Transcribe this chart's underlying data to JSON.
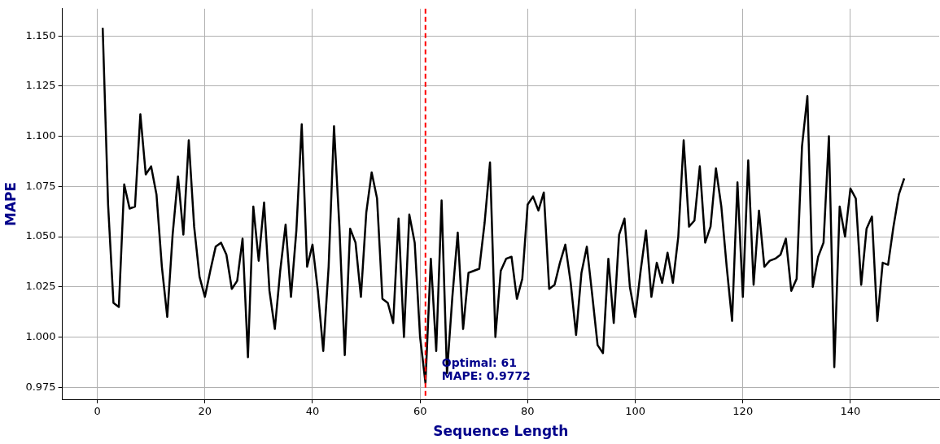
{
  "chart_data": {
    "type": "line",
    "xlabel": "Sequence Length",
    "ylabel": "MAPE",
    "x": [
      1,
      2,
      3,
      4,
      5,
      6,
      7,
      8,
      9,
      10,
      11,
      12,
      13,
      14,
      15,
      16,
      17,
      18,
      19,
      20,
      21,
      22,
      23,
      24,
      25,
      26,
      27,
      28,
      29,
      30,
      31,
      32,
      33,
      34,
      35,
      36,
      37,
      38,
      39,
      40,
      41,
      42,
      43,
      44,
      45,
      46,
      47,
      48,
      49,
      50,
      51,
      52,
      53,
      54,
      55,
      56,
      57,
      58,
      59,
      60,
      61,
      62,
      63,
      64,
      65,
      66,
      67,
      68,
      69,
      70,
      71,
      72,
      73,
      74,
      75,
      76,
      77,
      78,
      79,
      80,
      81,
      82,
      83,
      84,
      85,
      86,
      87,
      88,
      89,
      90,
      91,
      92,
      93,
      94,
      95,
      96,
      97,
      98,
      99,
      100,
      101,
      102,
      103,
      104,
      105,
      106,
      107,
      108,
      109,
      110,
      111,
      112,
      113,
      114,
      115,
      116,
      117,
      118,
      119,
      120,
      121,
      122,
      123,
      124,
      125,
      126,
      127,
      128,
      129,
      130,
      131,
      132,
      133,
      134,
      135,
      136,
      137,
      138,
      139,
      140,
      141,
      142,
      143,
      144,
      145,
      146,
      147,
      148,
      149,
      150
    ],
    "series": [
      {
        "color": "#000000",
        "values": [
          1.154,
          1.066,
          1.017,
          1.015,
          1.076,
          1.064,
          1.065,
          1.111,
          1.081,
          1.085,
          1.071,
          1.035,
          1.01,
          1.051,
          1.08,
          1.051,
          1.098,
          1.055,
          1.03,
          1.02,
          1.033,
          1.045,
          1.047,
          1.041,
          1.024,
          1.028,
          1.049,
          0.99,
          1.065,
          1.038,
          1.067,
          1.023,
          1.004,
          1.033,
          1.056,
          1.02,
          1.053,
          1.106,
          1.035,
          1.046,
          1.023,
          0.993,
          1.035,
          1.105,
          1.055,
          0.991,
          1.054,
          1.047,
          1.02,
          1.062,
          1.082,
          1.069,
          1.019,
          1.017,
          1.007,
          1.059,
          1.0,
          1.061,
          1.047,
          1.0,
          0.9772,
          1.039,
          0.993,
          1.068,
          0.982,
          1.02,
          1.052,
          1.004,
          1.032,
          1.033,
          1.034,
          1.057,
          1.087,
          1.0,
          1.033,
          1.039,
          1.04,
          1.019,
          1.029,
          1.066,
          1.07,
          1.063,
          1.072,
          1.024,
          1.026,
          1.037,
          1.046,
          1.027,
          1.001,
          1.032,
          1.045,
          1.021,
          0.996,
          0.992,
          1.039,
          1.007,
          1.051,
          1.059,
          1.025,
          1.01,
          1.033,
          1.053,
          1.02,
          1.037,
          1.027,
          1.042,
          1.027,
          1.05,
          1.098,
          1.055,
          1.058,
          1.085,
          1.047,
          1.055,
          1.084,
          1.065,
          1.035,
          1.008,
          1.077,
          1.02,
          1.088,
          1.026,
          1.063,
          1.035,
          1.038,
          1.039,
          1.041,
          1.049,
          1.023,
          1.029,
          1.095,
          1.12,
          1.025,
          1.04,
          1.047,
          1.1,
          0.985,
          1.065,
          1.05,
          1.074,
          1.069,
          1.026,
          1.054,
          1.06,
          1.008,
          1.037,
          1.036,
          1.055,
          1.071,
          1.079
        ]
      }
    ],
    "xlim": [
      -6.5,
      156.5
    ],
    "xticks": [
      0,
      20,
      40,
      60,
      80,
      100,
      120,
      140
    ],
    "ylim": [
      0.969,
      1.1635
    ],
    "yticks": [
      {
        "value": 0.975,
        "label": "0.975"
      },
      {
        "value": 1.0,
        "label": "1.000"
      },
      {
        "value": 1.025,
        "label": "1.025"
      },
      {
        "value": 1.05,
        "label": "1.050"
      },
      {
        "value": 1.075,
        "label": "1.075"
      },
      {
        "value": 1.1,
        "label": "1.100"
      },
      {
        "value": 1.125,
        "label": "1.125"
      },
      {
        "value": 1.15,
        "label": "1.150"
      }
    ],
    "ref_lines": [
      {
        "axis": "x",
        "value": 61,
        "color": "#ff0000",
        "line_style": "dashed"
      }
    ],
    "annotations": [
      {
        "text": "Optimal: 61\nMAPE: 0.9772",
        "x": 61,
        "y": 0.9772
      }
    ],
    "grid": true,
    "legend": false,
    "marker": "none",
    "line_style": "solid"
  }
}
